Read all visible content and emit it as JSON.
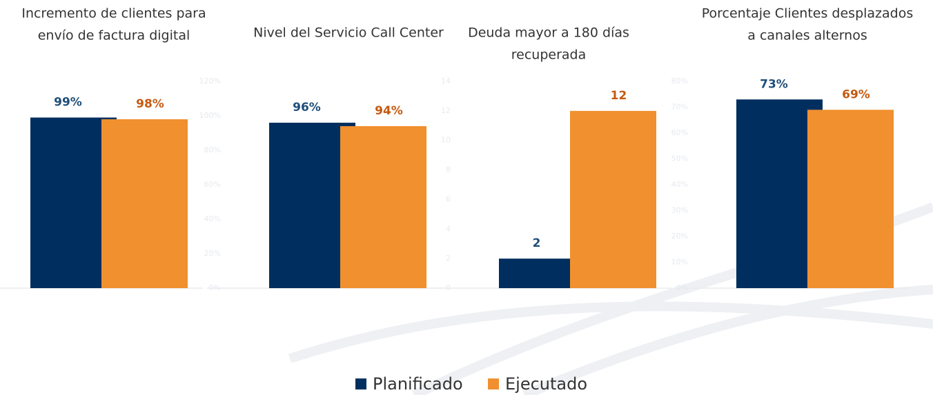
{
  "legend": [
    {
      "name": "Planificado",
      "color": "#002f5f",
      "label_color": "#1f4e79"
    },
    {
      "name": "Ejecutado",
      "color": "#f0902f",
      "label_color": "#c55a11"
    }
  ],
  "chart_data": [
    {
      "type": "bar",
      "title": [
        "Incremento de clientes para",
        "envío de factura digital"
      ],
      "values": [
        99,
        98
      ],
      "value_labels": [
        "99%",
        "98%"
      ],
      "ylim": [
        0,
        120
      ]
    },
    {
      "type": "bar",
      "title": [
        "Nivel del Servicio Call Center"
      ],
      "values": [
        96,
        94
      ],
      "value_labels": [
        "96%",
        "94%"
      ],
      "ylim": [
        0,
        120
      ],
      "yticks": [
        {
          "value": 0,
          "label": "0%"
        },
        {
          "value": 20,
          "label": "20%"
        },
        {
          "value": 40,
          "label": "40%"
        },
        {
          "value": 60,
          "label": "60%"
        },
        {
          "value": 80,
          "label": "80%"
        },
        {
          "value": 100,
          "label": "100%"
        },
        {
          "value": 120,
          "label": "120%"
        }
      ]
    },
    {
      "type": "bar",
      "title": [
        "Deuda mayor a 180 días",
        "recuperada"
      ],
      "values": [
        2,
        12
      ],
      "ylim": [
        0,
        14
      ],
      "yticks": [
        0,
        2,
        4,
        6,
        8,
        10,
        12,
        14
      ]
    },
    {
      "type": "bar",
      "title": [
        "Porcentaje Clientes desplazados",
        "a canales alternos"
      ],
      "values": [
        73,
        69
      ],
      "value_labels": [
        "73%",
        "69%"
      ],
      "ylim": [
        0,
        80
      ],
      "yticks": [
        {
          "value": 0,
          "label": "0%"
        },
        {
          "value": 10,
          "label": "10%"
        },
        {
          "value": 20,
          "label": "20%"
        },
        {
          "value": 30,
          "label": "30%"
        },
        {
          "value": 40,
          "label": "40%"
        },
        {
          "value": 50,
          "label": "50%"
        },
        {
          "value": 60,
          "label": "60%"
        },
        {
          "value": 70,
          "label": "70%"
        },
        {
          "value": 80,
          "label": "80%"
        }
      ]
    }
  ]
}
